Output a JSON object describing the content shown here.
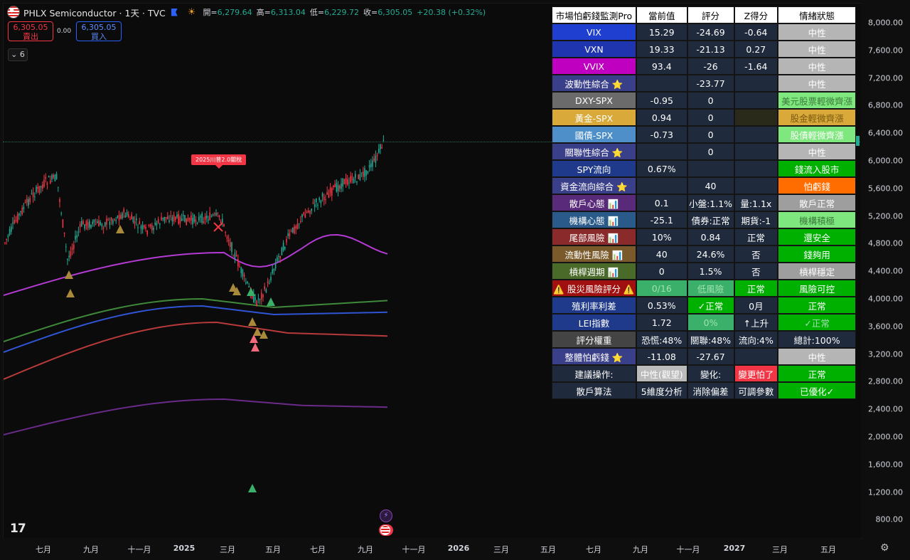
{
  "header": {
    "symbol": "PHLX Semiconductor · 1天 · TVC",
    "open_label": "開=",
    "open": "6,279.64",
    "high_label": "高=",
    "high": "6,313.04",
    "low_label": "低=",
    "low": "6,229.72",
    "close_label": "收=",
    "close": "6,305.05",
    "change": "+20.38 (+0.32%)"
  },
  "trade": {
    "sell_price": "6,305.05",
    "sell_label": "賣出",
    "spread": "0.00",
    "buy_price": "6,305.05",
    "buy_label": "買入",
    "indicator_count": "6"
  },
  "annotation": {
    "note": "2025川普2.0關稅"
  },
  "price_axis": {
    "labels": [
      "8,000.00",
      "7,600.00",
      "7,200.00",
      "6,800.00",
      "6,400.00",
      "6,000.00",
      "5,600.00",
      "5,200.00",
      "4,800.00",
      "4,400.00",
      "4,000.00",
      "3,600.00",
      "3,200.00",
      "2,800.00",
      "2,400.00",
      "2,000.00",
      "1,600.00",
      "1,200.00",
      "800.00"
    ],
    "current_tag": "X"
  },
  "time_axis": {
    "labels": [
      "七月",
      "九月",
      "十一月",
      "2025",
      "三月",
      "五月",
      "七月",
      "九月",
      "十一月",
      "2026",
      "三月",
      "五月",
      "七月",
      "九月",
      "十一月",
      "2027",
      "三月",
      "五月"
    ]
  },
  "table": {
    "header": [
      "市場怕虧錢監測Pro",
      "當前值",
      "評分",
      "Z得分",
      "情緒狀態"
    ],
    "rows": [
      [
        "VIX",
        "15.29",
        "-24.69",
        "-0.64",
        "中性"
      ],
      [
        "VXN",
        "19.33",
        "-21.13",
        "0.27",
        "中性"
      ],
      [
        "VVIX",
        "93.4",
        "-26",
        "-1.64",
        "中性"
      ],
      [
        "波動性綜合 ⭐",
        "",
        "-23.77",
        "",
        "中性"
      ],
      [
        "DXY-SPX",
        "-0.95",
        "0",
        "",
        "美元股票輕微齊漲"
      ],
      [
        "黃金-SPX",
        "0.94",
        "0",
        "",
        "股金輕微齊漲"
      ],
      [
        "國債-SPX",
        "-0.73",
        "0",
        "",
        "股債輕微齊漲"
      ],
      [
        "關聯性綜合 ⭐",
        "",
        "0",
        "",
        "中性"
      ],
      [
        "SPY流向",
        "0.67%",
        "",
        "",
        "錢流入股市"
      ],
      [
        "資金流向綜合 ⭐",
        "",
        "40",
        "",
        "怕虧錢"
      ],
      [
        "散戶心態 📊",
        "0.1",
        "小盤:1.1%",
        "量:1.1x",
        "散戶正常"
      ],
      [
        "機構心態 📊",
        "-25.1",
        "債券:正常",
        "期貨:-1",
        "機構積極"
      ],
      [
        "尾部風險 📊",
        "10%",
        "0.84",
        "正常",
        "還安全"
      ],
      [
        "流動性風險 📊",
        "40",
        "24.6%",
        "否",
        "錢夠用"
      ],
      [
        "槓桿週期 📊",
        "0",
        "1.5%",
        "否",
        "槓桿穩定"
      ],
      [
        "⚠️ 股災風險評分 ⚠️",
        "0/16",
        "低風險",
        "正常",
        "風險可控"
      ],
      [
        "殖利率利差",
        "0.53%",
        "✓正常",
        "0月",
        "正常"
      ],
      [
        "LEI指數",
        "1.72",
        "0%",
        "↑上升",
        "✓正常"
      ],
      [
        "評分權重",
        "恐慌:48%",
        "關聯:48%",
        "流向:4%",
        "總計:100%"
      ],
      [
        "整體怕虧錢 ⭐",
        "-11.08",
        "-27.67",
        "",
        "中性"
      ],
      [
        "建議操作:",
        "中性(觀望)",
        "變化:",
        "變更怕了",
        "正常"
      ],
      [
        "散戶算法",
        "5維度分析",
        "消除偏差",
        "可調參數",
        "已優化✓"
      ]
    ],
    "colors": {
      "header_bg": "#ffffff",
      "vix": "#1e3fd0",
      "vxn": "#1f35b0",
      "vvix": "#c000c0",
      "neutral": "#b5b5b5",
      "orange": "#ff6d00",
      "green": "#00b000"
    }
  },
  "chart_colors": {
    "candle_up": "#22ab94",
    "candle_down": "#f23645",
    "magenta_line": "#b43ad4",
    "green_line": "#3f8a3a",
    "blue_line": "#2f55d4",
    "red_line": "#b83a3a",
    "purple_line": "#6a2a8a"
  }
}
